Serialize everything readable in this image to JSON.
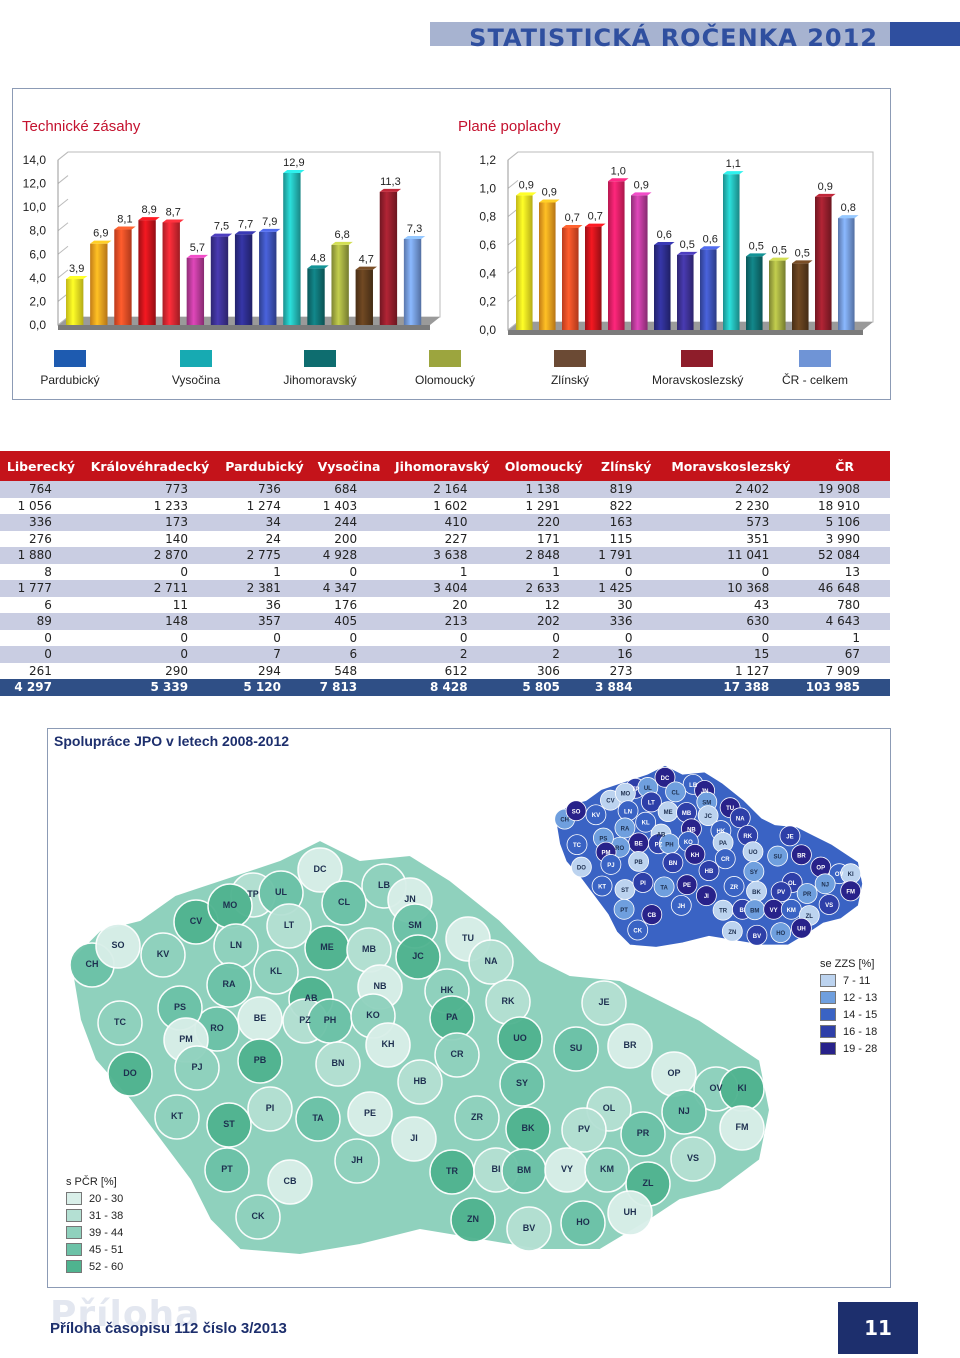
{
  "header": {
    "title": "STATISTICKÁ ROČENKA 2012"
  },
  "chart_data": [
    {
      "type": "bar",
      "title": "Technické zásahy",
      "ylim": [
        0,
        14
      ],
      "yticks": [
        "0,0",
        "2,0",
        "4,0",
        "6,0",
        "8,0",
        "10,0",
        "12,0",
        "14,0"
      ],
      "values": [
        3.9,
        6.9,
        8.1,
        8.9,
        8.7,
        5.7,
        7.5,
        7.7,
        7.9,
        12.9,
        4.8,
        6.8,
        4.7,
        11.3,
        7.3
      ],
      "labels": [
        "3,9",
        "6,9",
        "8,1",
        "8,9",
        "8,7",
        "5,7",
        "7,5",
        "7,7",
        "7,9",
        "12,9",
        "4,8",
        "6,8",
        "4,7",
        "11,3",
        "7,3"
      ],
      "colors": [
        "#f1e41f",
        "#f29a1d",
        "#e94a24",
        "#c4131a",
        "#d3252f",
        "#b33995",
        "#3a2f8e",
        "#2b2b86",
        "#3b4fb1",
        "#22b3b0",
        "#0e6d6f",
        "#9ca53e",
        "#5a3a1c",
        "#8e1d2a",
        "#6f94d6"
      ]
    },
    {
      "type": "bar",
      "title": "Plané poplachy",
      "ylim": [
        0,
        1.2
      ],
      "yticks": [
        "0,0",
        "0,2",
        "0,4",
        "0,6",
        "0,8",
        "1,0",
        "1,2"
      ],
      "values": [
        0.95,
        0.9,
        0.72,
        0.73,
        1.05,
        0.95,
        0.6,
        0.53,
        0.57,
        1.1,
        0.52,
        0.49,
        0.47,
        0.94,
        0.79
      ],
      "labels": [
        "0,9",
        "0,9",
        "0,7",
        "0,7",
        "1,0",
        "0,9",
        "0,6",
        "0,5",
        "0,6",
        "1,1",
        "0,5",
        "0,5",
        "0,5",
        "0,9",
        "0,8"
      ],
      "colors": [
        "#f1e41f",
        "#f29a1d",
        "#e94a24",
        "#c4131a",
        "#e31e63",
        "#b33995",
        "#2b2b86",
        "#3a2f8e",
        "#3b4fb1",
        "#22b3b0",
        "#0e6d6f",
        "#9ca53e",
        "#5a3a1c",
        "#8e1d2a",
        "#6f94d6"
      ]
    }
  ],
  "legend": [
    {
      "label": "Pardubický",
      "color": "#1e5bb0"
    },
    {
      "label": "Vysočina",
      "color": "#17aab2"
    },
    {
      "label": "Jihomoravský",
      "color": "#0e6d6f"
    },
    {
      "label": "Olomoucký",
      "color": "#9ca53e"
    },
    {
      "label": "Zlínský",
      "color": "#6b4a34"
    },
    {
      "label": "Moravskoslezský",
      "color": "#8e1d2a"
    },
    {
      "label": "ČR - celkem",
      "color": "#6f94d6"
    }
  ],
  "table": {
    "headers": [
      "Liberecký",
      "Královéhradecký",
      "Pardubický",
      "Vysočina",
      "Jihomoravský",
      "Olomoucký",
      "Zlínský",
      "Moravskoslezský",
      "ČR"
    ],
    "rows": [
      [
        "764",
        "773",
        "736",
        "684",
        "2 164",
        "1 138",
        "819",
        "2 402",
        "19 908"
      ],
      [
        "1 056",
        "1 233",
        "1 274",
        "1 403",
        "1 602",
        "1 291",
        "822",
        "2 230",
        "18 910"
      ],
      [
        "336",
        "173",
        "34",
        "244",
        "410",
        "220",
        "163",
        "573",
        "5 106"
      ],
      [
        "276",
        "140",
        "24",
        "200",
        "227",
        "171",
        "115",
        "351",
        "3 990"
      ],
      [
        "1 880",
        "2 870",
        "2 775",
        "4 928",
        "3 638",
        "2 848",
        "1 791",
        "11 041",
        "52 084"
      ],
      [
        "8",
        "0",
        "1",
        "0",
        "1",
        "1",
        "0",
        "0",
        "13"
      ],
      [
        "1 777",
        "2 711",
        "2 381",
        "4 347",
        "3 404",
        "2 633",
        "1 425",
        "10 368",
        "46 648"
      ],
      [
        "6",
        "11",
        "36",
        "176",
        "20",
        "12",
        "30",
        "43",
        "780"
      ],
      [
        "89",
        "148",
        "357",
        "405",
        "213",
        "202",
        "336",
        "630",
        "4 643"
      ],
      [
        "0",
        "0",
        "0",
        "0",
        "0",
        "0",
        "0",
        "0",
        "1"
      ],
      [
        "0",
        "0",
        "7",
        "6",
        "2",
        "2",
        "16",
        "15",
        "67"
      ],
      [
        "261",
        "290",
        "294",
        "548",
        "612",
        "306",
        "273",
        "1 127",
        "7 909"
      ]
    ],
    "total": [
      "4 297",
      "5 339",
      "5 120",
      "7 813",
      "8 428",
      "5 805",
      "3 884",
      "17 388",
      "103 985"
    ]
  },
  "map": {
    "title": "Spolupráce JPO v letech 2008-2012",
    "legend_pcr": {
      "title": "s PČR [%]",
      "items": [
        "20 - 30",
        "31 - 38",
        "39 - 44",
        "45 - 51",
        "52 - 60"
      ],
      "colors": [
        "#d9efe9",
        "#b4e0d3",
        "#8fd1bd",
        "#6cc2a7",
        "#4fb38f"
      ]
    },
    "legend_zzs": {
      "title": "se ZZS [%]",
      "items": [
        "7 - 11",
        "12 - 13",
        "14 - 15",
        "16 - 18",
        "19 - 28"
      ],
      "colors": [
        "#bcd3ef",
        "#6f9fde",
        "#3a63c4",
        "#2e3fa8",
        "#28228a"
      ]
    },
    "districts": [
      "CH",
      "SO",
      "KV",
      "CV",
      "TP",
      "UL",
      "DC",
      "LB",
      "MO",
      "LT",
      "CL",
      "JN",
      "LN",
      "ME",
      "MB",
      "SM",
      "TU",
      "KL",
      "JC",
      "NA",
      "RA",
      "NB",
      "HK",
      "AB",
      "PZ",
      "PH",
      "BE",
      "KO",
      "PA",
      "RK",
      "RO",
      "KH",
      "CR",
      "UO",
      "JE",
      "PS",
      "PM",
      "PJ",
      "PB",
      "BN",
      "SU",
      "BR",
      "TC",
      "DO",
      "HB",
      "SY",
      "OP",
      "OV",
      "KI",
      "OL",
      "NJ",
      "FM",
      "KT",
      "ST",
      "PI",
      "TA",
      "PE",
      "ZR",
      "BK",
      "PV",
      "PR",
      "JI",
      "JH",
      "TR",
      "BI",
      "BM",
      "VY",
      "KM",
      "ZL",
      "VS",
      "PT",
      "CB",
      "CK",
      "ZN",
      "BV",
      "HO",
      "UH"
    ]
  },
  "footer": {
    "text": "Příloha časopisu 112 číslo 3/2013",
    "ghost": "Příloha",
    "page": "11"
  }
}
